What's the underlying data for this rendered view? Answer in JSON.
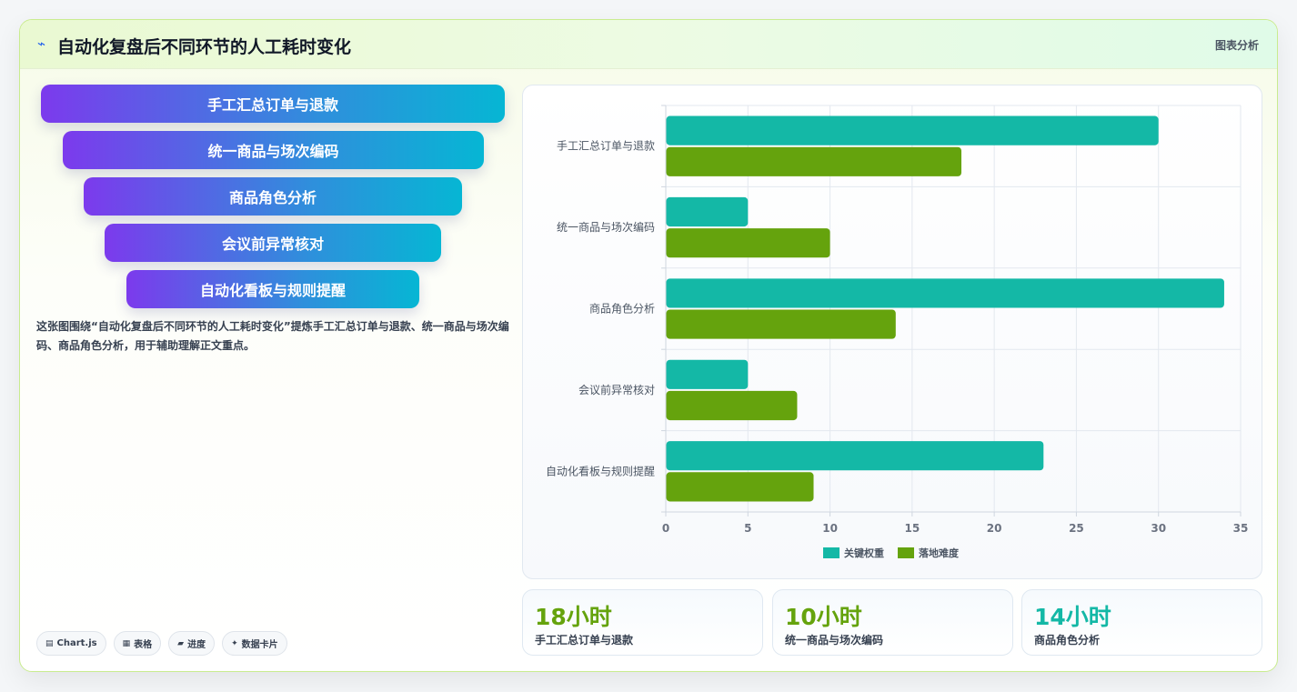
{
  "header": {
    "icon": "chart-line-icon",
    "title": "自动化复盘后不同环节的人工耗时变化",
    "action_label": "图表分析"
  },
  "funnel": {
    "items": [
      {
        "label": "手工汇总订单与退款"
      },
      {
        "label": "统一商品与场次编码"
      },
      {
        "label": "商品角色分析"
      },
      {
        "label": "会议前异常核对"
      },
      {
        "label": "自动化看板与规则提醒"
      }
    ]
  },
  "description": "这张图围绕“自动化复盘后不同环节的人工耗时变化”提炼手工汇总订单与退款、统一商品与场次编码、商品角色分析，用于辅助理解正文重点。",
  "chips": [
    {
      "icon": "chart-icon",
      "label": "Chart.js"
    },
    {
      "icon": "table-icon",
      "label": "表格"
    },
    {
      "icon": "progress-icon",
      "label": "进度"
    },
    {
      "icon": "sparkle-icon",
      "label": "数据卡片"
    }
  ],
  "chart_data": {
    "type": "bar",
    "orientation": "horizontal",
    "categories": [
      "手工汇总订单与退款",
      "统一商品与场次编码",
      "商品角色分析",
      "会议前异常核对",
      "自动化看板与规则提醒"
    ],
    "series": [
      {
        "name": "关键权重",
        "color": "#14b8a6",
        "values": [
          30,
          5,
          34,
          5,
          23
        ]
      },
      {
        "name": "落地难度",
        "color": "#65a30d",
        "values": [
          18,
          10,
          14,
          8,
          9
        ]
      }
    ],
    "xlim": [
      0,
      35
    ],
    "xticks": [
      "0",
      "5",
      "10",
      "15",
      "20",
      "25",
      "30",
      "35"
    ],
    "grid": true,
    "legend": "bottom"
  },
  "stats": [
    {
      "value": "18小时",
      "label": "手工汇总订单与退款",
      "color": "#65a30d"
    },
    {
      "value": "10小时",
      "label": "统一商品与场次编码",
      "color": "#65a30d"
    },
    {
      "value": "14小时",
      "label": "商品角色分析",
      "color": "#14b8a6"
    }
  ]
}
